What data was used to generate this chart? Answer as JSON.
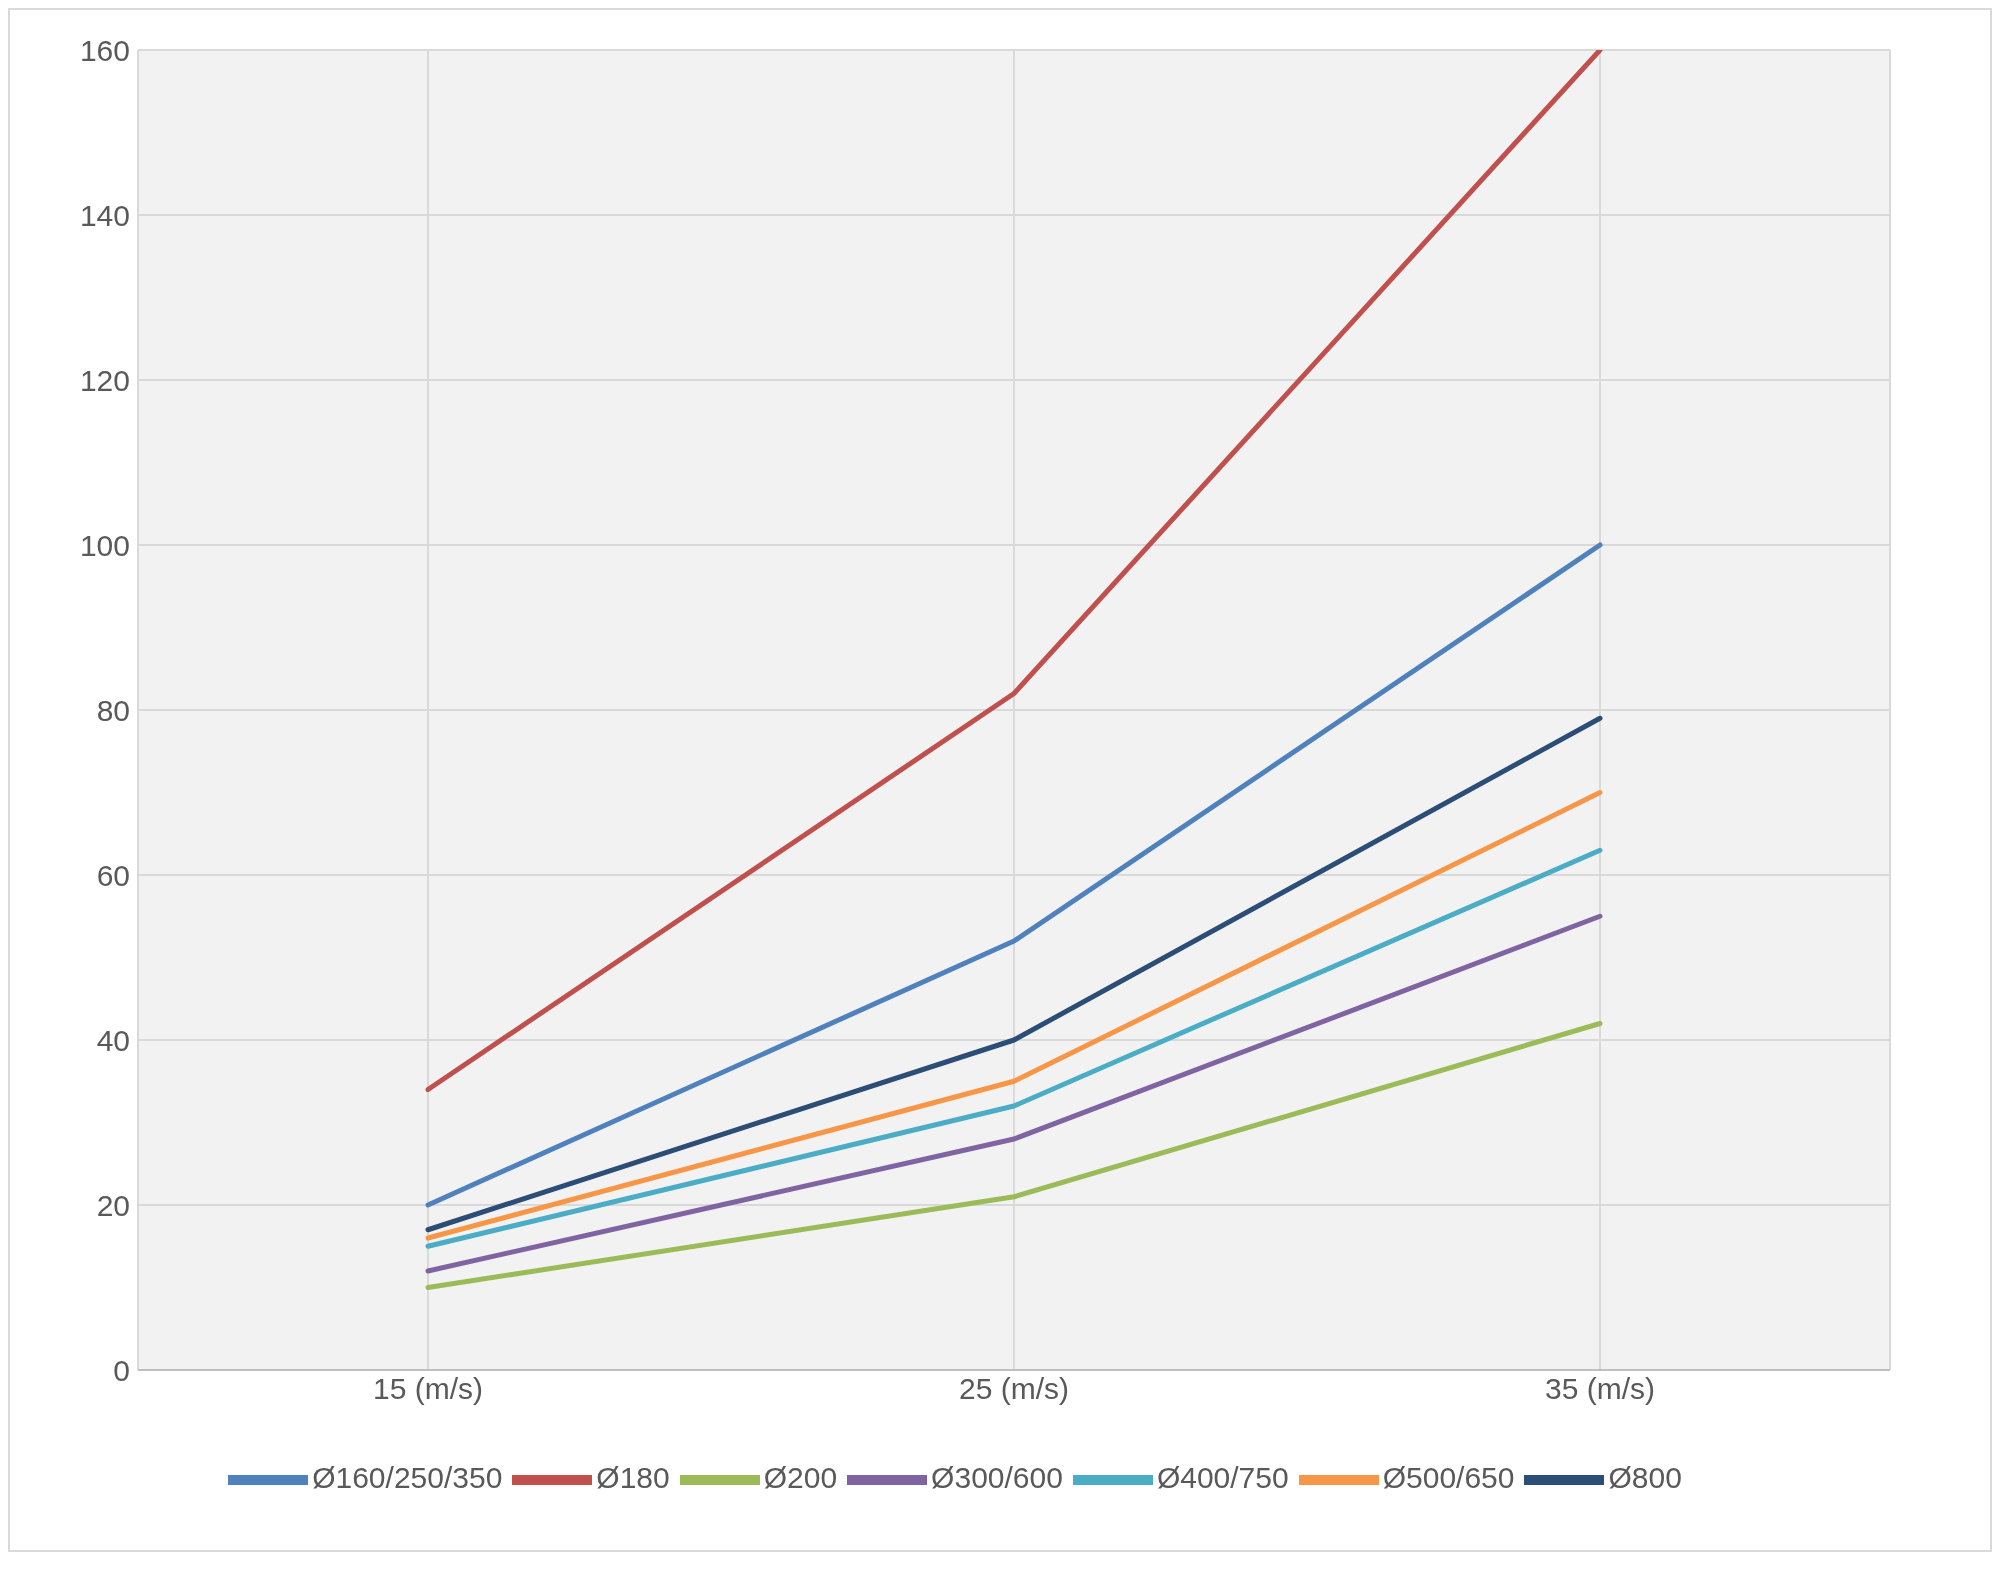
{
  "chart_data": {
    "type": "line",
    "categories": [
      "15 (m/s)",
      "25 (m/s)",
      "35 (m/s)"
    ],
    "series": [
      {
        "name": "Ø160/250/350",
        "color": "#4f81bd",
        "values": [
          20,
          52,
          100
        ]
      },
      {
        "name": "Ø180",
        "color": "#c0504d",
        "values": [
          34,
          82,
          160
        ]
      },
      {
        "name": "Ø200",
        "color": "#9bbb59",
        "values": [
          10,
          21,
          42
        ]
      },
      {
        "name": "Ø300/600",
        "color": "#8064a2",
        "values": [
          12,
          28,
          55
        ]
      },
      {
        "name": "Ø400/750",
        "color": "#4bacc6",
        "values": [
          15,
          32,
          63
        ]
      },
      {
        "name": "Ø500/650",
        "color": "#f79646",
        "values": [
          16,
          35,
          70
        ]
      },
      {
        "name": "Ø800",
        "color": "#2c4d75",
        "values": [
          17,
          40,
          79
        ]
      }
    ],
    "ylim": [
      0,
      160
    ],
    "yticks": [
      0,
      20,
      40,
      60,
      80,
      100,
      120,
      140,
      160
    ],
    "grid": true,
    "legend": "bottom",
    "marker": "none",
    "line_style": "solid"
  }
}
